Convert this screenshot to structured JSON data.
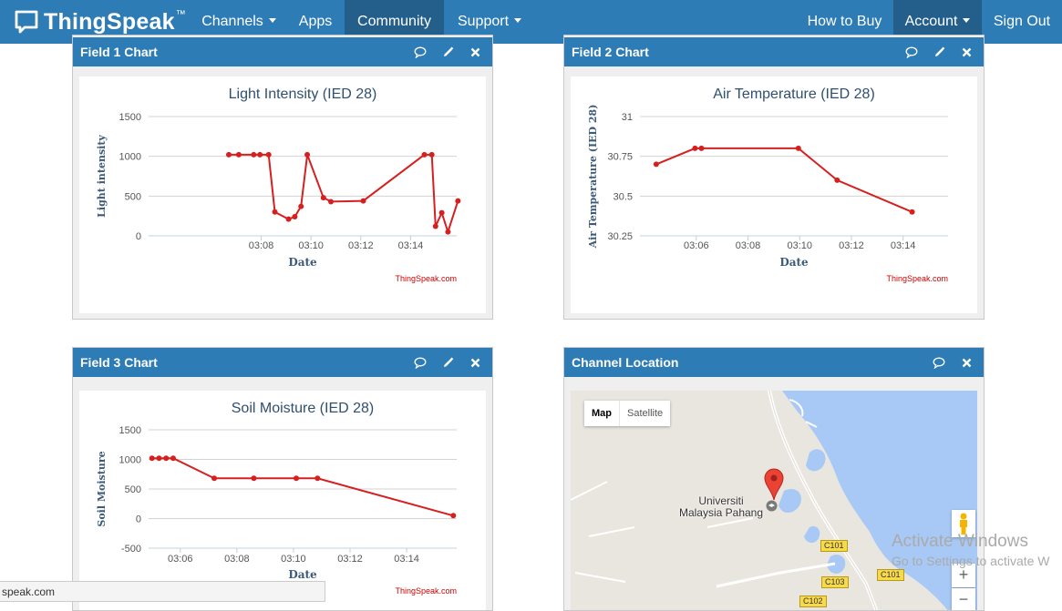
{
  "nav": {
    "brand": "ThingSpeak",
    "brand_tm": "™",
    "channels": "Channels",
    "apps": "Apps",
    "community": "Community",
    "support": "Support",
    "how_to_buy": "How to Buy",
    "account": "Account",
    "sign_out": "Sign Out"
  },
  "panels": {
    "field1": "Field 1 Chart",
    "field2": "Field 2 Chart",
    "field3": "Field 3 Chart",
    "location": "Channel Location"
  },
  "charts": [
    {
      "type": "line",
      "title": "Light Intensity (IED 28)",
      "ylabel": "Light intensity",
      "xlabel": "Date",
      "credit": "ThingSpeak.com",
      "color": "#d62020",
      "ylim": [
        0,
        1500
      ],
      "yticks": [
        0,
        500,
        1000,
        1500
      ],
      "xlim": [
        3.48,
        15.85
      ],
      "xticks": [
        "03:08",
        "03:10",
        "03:12",
        "03:14"
      ],
      "xtick_values": [
        8,
        10,
        12,
        14
      ],
      "x": [
        6.7,
        7.1,
        7.7,
        7.95,
        8.3,
        8.55,
        9.1,
        9.35,
        9.6,
        9.85,
        10.5,
        10.8,
        12.1,
        14.55,
        14.85,
        15.0,
        15.25,
        15.5,
        15.9
      ],
      "y": [
        1020,
        1020,
        1020,
        1020,
        1020,
        300,
        210,
        240,
        370,
        1020,
        480,
        430,
        440,
        1020,
        1020,
        120,
        290,
        50,
        440
      ]
    },
    {
      "type": "line",
      "title": "Air Temperature (IED 28)",
      "ylabel": "Air Temperature (IED 28)",
      "xlabel": "Date",
      "credit": "ThingSpeak.com",
      "color": "#d62020",
      "ylim": [
        30.25,
        31
      ],
      "yticks": [
        30.25,
        30.5,
        30.75,
        31
      ],
      "ytick_labels": [
        "30.25",
        "30.5",
        "30.75",
        "31"
      ],
      "xlim": [
        3.82,
        15.74
      ],
      "xticks": [
        "03:06",
        "03:08",
        "03:10",
        "03:12",
        "03:14"
      ],
      "xtick_values": [
        6,
        8,
        10,
        12,
        14
      ],
      "x": [
        4.45,
        5.95,
        6.2,
        9.95,
        11.45,
        14.35
      ],
      "y": [
        30.7,
        30.8,
        30.8,
        30.8,
        30.6,
        30.4
      ]
    },
    {
      "type": "line",
      "title": "Soil Moisture (IED 28)",
      "ylabel": "Soil Moisture",
      "xlabel": "Date",
      "credit": "ThingSpeak.com",
      "color": "#d62020",
      "ylim": [
        -500,
        1500
      ],
      "yticks": [
        -500,
        0,
        500,
        1000,
        1500
      ],
      "xlim": [
        4.88,
        15.77
      ],
      "xticks": [
        "03:06",
        "03:08",
        "03:10",
        "03:12",
        "03:14"
      ],
      "xtick_values": [
        6,
        8,
        10,
        12,
        14
      ],
      "x": [
        5.0,
        5.25,
        5.5,
        5.75,
        7.2,
        8.6,
        10.1,
        10.85,
        15.65
      ],
      "y": [
        1020,
        1020,
        1020,
        1020,
        680,
        680,
        680,
        680,
        50
      ]
    }
  ],
  "map": {
    "map_btn": "Map",
    "satellite_btn": "Satellite",
    "place_line1": "Universiti",
    "place_line2": "Malaysia Pahang",
    "road1": "C101",
    "road2": "C101",
    "road3": "C103",
    "road4": "C102",
    "zoom_in": "+",
    "zoom_out": "−"
  },
  "status_url": "speak.com",
  "watermark": {
    "line1": "Activate Windows",
    "line2": "Go to Settings to activate W"
  },
  "colors": {
    "navbar": "#2d7cb5",
    "active_nav": "#235f8a",
    "series": "#d62020",
    "axis_text": "#3d5a7a"
  }
}
